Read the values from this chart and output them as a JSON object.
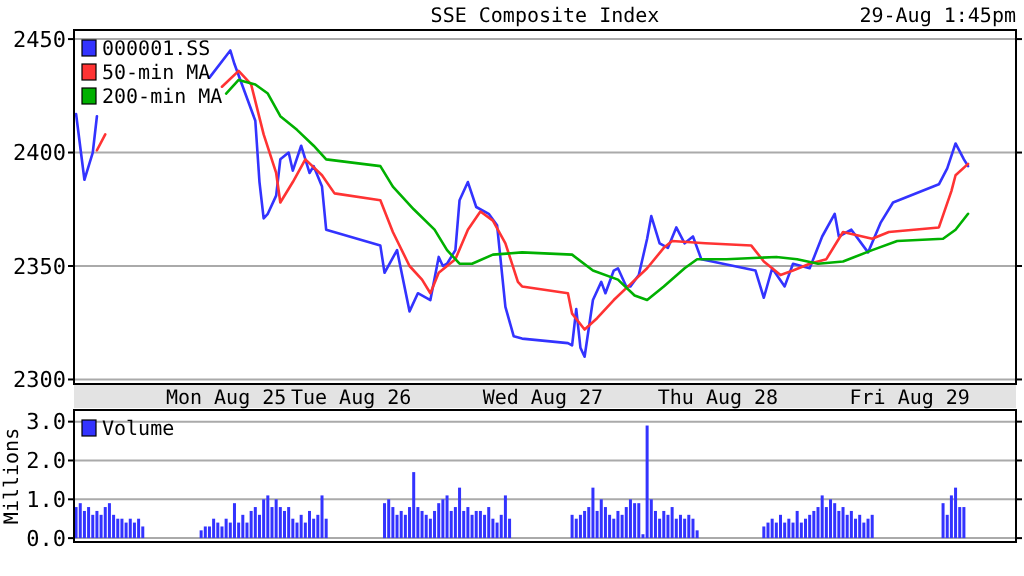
{
  "chart_data": [
    {
      "type": "line",
      "title": "SSE Composite Index",
      "subtitle": "29-Aug 1:45pm",
      "categories": [
        null,
        null,
        null,
        null,
        null,
        null,
        null,
        null,
        null,
        null,
        null,
        null,
        null,
        null,
        null,
        null,
        null,
        null,
        null,
        null,
        null,
        null,
        null,
        null,
        null,
        null,
        null,
        null,
        null,
        null,
        null,
        null,
        null,
        null,
        null,
        null,
        "Mon Aug 25",
        null,
        null,
        null,
        null,
        null,
        null,
        null,
        null,
        null,
        null,
        null,
        null,
        null,
        null,
        null,
        null,
        null,
        null,
        null,
        null,
        null,
        null,
        null,
        null,
        null,
        null,
        null,
        null,
        null,
        "Tue Aug 26",
        null,
        null,
        null,
        null,
        null,
        null,
        null,
        null,
        null,
        null,
        null,
        null,
        null,
        null,
        null,
        null,
        null,
        null,
        null,
        null,
        null,
        null,
        null,
        null,
        null,
        null,
        null,
        null,
        null,
        null,
        null,
        null,
        null,
        null,
        null,
        null,
        null,
        null,
        null,
        null,
        null,
        null,
        null,
        null,
        null,
        "Wed Aug 27",
        null,
        null,
        null,
        null,
        null,
        null,
        null,
        null,
        null,
        null,
        null,
        null,
        null,
        null,
        null,
        null,
        null,
        null,
        null,
        null,
        null,
        null,
        null,
        null,
        null,
        null,
        null,
        null,
        null,
        null,
        null,
        null,
        null,
        null,
        null,
        null,
        null,
        null,
        null,
        null,
        null,
        "Thu Aug 28",
        null,
        null,
        null,
        null,
        null,
        null,
        null,
        null,
        null,
        null,
        null,
        null,
        null,
        null,
        null,
        null,
        null,
        null,
        null,
        null,
        null,
        null,
        null,
        null,
        null,
        null,
        null,
        null,
        null,
        null,
        null,
        null,
        null,
        null,
        null,
        null,
        null,
        null,
        null,
        null,
        null,
        null,
        null,
        null,
        null,
        "Fri Aug 29",
        null,
        null,
        null,
        null,
        null,
        null,
        null,
        null,
        null,
        null,
        null,
        null,
        null,
        null,
        null,
        null,
        null,
        null,
        null,
        null,
        null,
        null,
        null,
        null,
        null
      ],
      "ylim": [
        2298,
        2454
      ],
      "yticks": [
        2300,
        2350,
        2400,
        2450
      ],
      "grid": "y",
      "legend": "top left",
      "series": [
        {
          "name": "000001.SS",
          "color": "#3333ff",
          "values": [
            2417,
            null,
            2388,
            null,
            2400,
            2416,
            null,
            null,
            null,
            null,
            null,
            null,
            null,
            null,
            null,
            null,
            null,
            null,
            null,
            null,
            null,
            null,
            null,
            null,
            null,
            null,
            null,
            null,
            null,
            null,
            null,
            null,
            2433,
            null,
            null,
            null,
            null,
            2445,
            2439,
            null,
            2429,
            null,
            null,
            2414,
            2387,
            2371,
            2373,
            null,
            2381,
            2397,
            null,
            2400,
            2392,
            null,
            2403,
            null,
            2391,
            2394,
            null,
            2385,
            2366,
            null,
            null,
            null,
            null,
            null,
            null,
            null,
            null,
            null,
            null,
            null,
            null,
            2359,
            2347,
            null,
            null,
            2357,
            null,
            null,
            2330,
            null,
            2338,
            null,
            null,
            2335,
            null,
            2354,
            2350,
            2351,
            null,
            2357,
            2379,
            null,
            2387,
            null,
            2376,
            null,
            null,
            2373,
            null,
            2368,
            null,
            2332,
            null,
            2319,
            null,
            2318,
            null,
            null,
            null,
            null,
            null,
            null,
            null,
            null,
            null,
            null,
            2316,
            2315,
            2331,
            2314,
            2310,
            null,
            2335,
            null,
            2343,
            2338,
            null,
            2348,
            2349,
            null,
            2341,
            2341,
            null,
            2346,
            null,
            2362,
            2372,
            null,
            2360,
            null,
            2358,
            null,
            2367,
            null,
            2360,
            null,
            2363,
            null,
            2353,
            null,
            null,
            null,
            null,
            null,
            null,
            null,
            null,
            null,
            null,
            null,
            null,
            2348,
            null,
            2336,
            null,
            2349,
            null,
            null,
            2341,
            null,
            2351,
            null,
            null,
            null,
            2349,
            null,
            null,
            2363,
            null,
            null,
            2373,
            2363,
            null,
            null,
            2366,
            null,
            null,
            null,
            2356,
            null,
            null,
            2369,
            null,
            null,
            2378,
            null,
            null,
            null,
            null,
            null,
            null,
            null,
            null,
            null,
            null,
            2386,
            null,
            2393,
            null,
            2404,
            null,
            2397,
            2394,
            null,
            null,
            null,
            null,
            null,
            null,
            null,
            null,
            null,
            null,
            null
          ]
        },
        {
          "name": "50-min MA",
          "color": "#ff3333",
          "values": [
            null,
            null,
            null,
            null,
            null,
            2401,
            null,
            2408,
            null,
            null,
            null,
            null,
            null,
            null,
            null,
            null,
            null,
            null,
            null,
            null,
            null,
            null,
            null,
            null,
            null,
            null,
            null,
            null,
            null,
            null,
            null,
            null,
            null,
            null,
            null,
            2429,
            null,
            null,
            null,
            2436,
            null,
            null,
            2430,
            null,
            null,
            2408,
            null,
            null,
            2391,
            2378,
            null,
            null,
            2387,
            null,
            null,
            2397,
            null,
            null,
            null,
            2390,
            null,
            null,
            2382,
            null,
            null,
            null,
            null,
            null,
            null,
            null,
            null,
            null,
            null,
            2379,
            null,
            null,
            2365,
            null,
            null,
            null,
            2350,
            null,
            null,
            2344,
            null,
            2338,
            null,
            2347,
            null,
            null,
            null,
            2353,
            null,
            null,
            2366,
            null,
            null,
            2374,
            null,
            null,
            2370,
            null,
            null,
            2360,
            null,
            null,
            2343,
            2341,
            null,
            null,
            null,
            null,
            null,
            null,
            null,
            null,
            null,
            null,
            2338,
            2329,
            null,
            null,
            2322,
            null,
            null,
            2327,
            null,
            null,
            null,
            2335,
            null,
            null,
            null,
            2342,
            null,
            null,
            null,
            2349,
            null,
            null,
            null,
            2358,
            null,
            2361,
            null,
            null,
            null,
            null,
            null,
            null,
            null,
            2360,
            null,
            null,
            null,
            null,
            null,
            null,
            null,
            null,
            null,
            null,
            2359,
            null,
            null,
            2352,
            null,
            null,
            null,
            2346,
            null,
            null,
            2348,
            null,
            null,
            null,
            2351,
            null,
            null,
            null,
            2353,
            null,
            null,
            null,
            2365,
            null,
            null,
            null,
            null,
            null,
            null,
            2362,
            null,
            null,
            null,
            2365,
            null,
            null,
            null,
            null,
            null,
            null,
            null,
            null,
            null,
            null,
            null,
            2367,
            null,
            null,
            2383,
            2390,
            null,
            null,
            2395,
            null,
            null,
            null,
            null,
            null,
            null,
            null,
            null,
            null,
            null,
            null
          ]
        },
        {
          "name": "200-min MA",
          "color": "#00b000",
          "values": [
            null,
            null,
            null,
            null,
            null,
            null,
            null,
            null,
            null,
            null,
            null,
            null,
            null,
            null,
            null,
            null,
            null,
            null,
            null,
            null,
            null,
            null,
            null,
            null,
            null,
            null,
            null,
            null,
            null,
            null,
            null,
            null,
            null,
            null,
            null,
            null,
            2426,
            null,
            null,
            2432,
            null,
            null,
            null,
            2430,
            null,
            null,
            2426,
            null,
            null,
            2416,
            null,
            null,
            null,
            2410,
            null,
            null,
            null,
            2403,
            null,
            null,
            2397,
            null,
            null,
            null,
            null,
            null,
            null,
            null,
            null,
            null,
            null,
            null,
            null,
            2394,
            null,
            null,
            2385,
            null,
            null,
            null,
            null,
            2375,
            null,
            null,
            null,
            null,
            2366,
            null,
            null,
            2357,
            null,
            null,
            2351,
            null,
            null,
            2351,
            null,
            null,
            null,
            null,
            2355,
            null,
            null,
            null,
            null,
            null,
            null,
            2356,
            null,
            null,
            null,
            null,
            null,
            null,
            null,
            null,
            null,
            null,
            null,
            2355,
            null,
            null,
            null,
            null,
            2348,
            null,
            null,
            null,
            null,
            null,
            2344,
            null,
            null,
            null,
            2337,
            null,
            null,
            2335,
            null,
            null,
            null,
            2341,
            null,
            null,
            null,
            null,
            2349,
            null,
            null,
            2353,
            null,
            null,
            null,
            null,
            null,
            null,
            2353,
            null,
            null,
            null,
            null,
            null,
            null,
            null,
            null,
            null,
            null,
            null,
            2354,
            null,
            null,
            null,
            null,
            2353,
            null,
            null,
            null,
            null,
            2351,
            null,
            null,
            null,
            null,
            null,
            2352,
            null,
            null,
            null,
            null,
            null,
            null,
            2357,
            null,
            null,
            null,
            null,
            null,
            2361,
            null,
            null,
            null,
            null,
            null,
            null,
            null,
            null,
            null,
            null,
            2362,
            null,
            null,
            2366,
            null,
            null,
            2373,
            null,
            null,
            null,
            null,
            null,
            null,
            null,
            null,
            null,
            null,
            null
          ]
        }
      ]
    },
    {
      "type": "bar",
      "ylabel": "Millions",
      "categories": [
        null,
        null,
        null,
        null,
        null,
        null,
        null,
        null,
        null,
        null,
        null,
        null,
        null,
        null,
        null,
        null,
        null,
        null,
        null,
        null,
        null,
        null,
        null,
        null,
        null,
        null,
        null,
        null,
        null,
        null,
        null,
        null,
        null,
        null,
        null,
        null,
        null,
        null,
        null,
        null,
        null,
        null,
        null,
        null,
        null,
        null,
        null,
        null,
        null,
        null,
        null,
        null,
        null,
        null,
        null,
        null,
        null,
        null,
        null,
        null,
        null,
        null,
        null,
        null,
        null,
        null,
        null,
        null,
        null,
        null,
        null,
        null,
        null,
        null,
        null,
        null,
        null,
        null,
        null,
        null,
        null,
        null,
        null,
        null,
        null,
        null,
        null,
        null,
        null,
        null,
        null,
        null,
        null,
        null,
        null,
        null,
        null,
        null,
        null,
        null,
        null,
        null,
        null,
        null,
        null,
        null,
        null,
        null,
        null,
        null,
        null,
        null,
        null,
        null,
        null,
        null,
        null,
        null,
        null,
        null,
        null,
        null,
        null,
        null,
        null,
        null,
        null,
        null,
        null,
        null,
        null,
        null,
        null,
        null,
        null,
        null,
        null,
        null,
        null,
        null,
        null,
        null,
        null,
        null,
        null,
        null,
        null,
        null,
        null,
        null,
        null,
        null,
        null,
        null,
        null,
        null,
        null,
        null,
        null,
        null,
        null,
        null,
        null,
        null,
        null,
        null,
        null,
        null,
        null,
        null,
        null,
        null,
        null,
        null,
        null,
        null,
        null,
        null,
        null,
        null,
        null,
        null,
        null,
        null,
        null,
        null,
        null,
        null,
        null,
        null,
        null,
        null,
        null,
        null,
        null,
        null,
        null,
        null,
        null,
        null,
        null,
        null,
        null,
        null,
        null,
        null,
        null,
        null,
        null,
        null,
        null,
        null,
        null,
        null,
        null,
        null,
        null,
        null,
        null,
        null,
        null,
        null,
        null,
        null,
        null,
        null
      ],
      "ylim": [
        -0.1,
        3.3
      ],
      "yticks": [
        {
          "value": 0,
          "label": "0.0"
        },
        {
          "value": 1,
          "label": "1.0"
        },
        {
          "value": 2,
          "label": "2.0"
        },
        {
          "value": 3,
          "label": "3.0"
        }
      ],
      "grid": "y",
      "legend": "top left",
      "tick_labels": "y",
      "series": [
        {
          "name": "Volume",
          "color": "#3333ff",
          "values": [
            0.8,
            0.9,
            0.7,
            0.8,
            0.6,
            0.7,
            0.6,
            0.8,
            0.9,
            0.6,
            0.5,
            0.5,
            0.4,
            0.5,
            0.4,
            0.5,
            0.3,
            null,
            null,
            null,
            null,
            null,
            null,
            null,
            null,
            null,
            null,
            null,
            null,
            null,
            0.2,
            0.3,
            0.3,
            0.5,
            0.4,
            0.3,
            0.5,
            0.4,
            0.9,
            0.4,
            0.6,
            0.4,
            0.7,
            0.8,
            0.6,
            1.0,
            1.1,
            0.8,
            1.0,
            0.8,
            0.7,
            0.8,
            0.5,
            0.4,
            0.6,
            0.4,
            0.7,
            0.5,
            0.6,
            1.1,
            0.5,
            null,
            null,
            null,
            null,
            null,
            null,
            null,
            null,
            null,
            null,
            null,
            null,
            null,
            0.9,
            1.0,
            0.8,
            0.6,
            0.7,
            0.6,
            0.8,
            1.7,
            0.8,
            0.7,
            0.6,
            0.5,
            0.7,
            0.9,
            1.0,
            1.1,
            0.7,
            0.8,
            1.3,
            0.7,
            0.8,
            0.6,
            0.7,
            0.7,
            0.6,
            0.8,
            0.5,
            0.4,
            0.6,
            1.1,
            0.5,
            null,
            null,
            null,
            null,
            null,
            null,
            null,
            null,
            null,
            null,
            null,
            null,
            null,
            null,
            0.6,
            0.5,
            0.6,
            0.7,
            0.8,
            1.3,
            0.7,
            1.0,
            0.8,
            0.6,
            0.5,
            0.7,
            0.6,
            0.8,
            1.0,
            0.9,
            0.9,
            0.1,
            2.9,
            1.0,
            0.7,
            0.5,
            0.7,
            0.6,
            0.8,
            0.5,
            0.6,
            0.5,
            0.6,
            0.5,
            0.2,
            null,
            null,
            null,
            null,
            null,
            null,
            null,
            null,
            null,
            null,
            null,
            null,
            null,
            null,
            null,
            0.3,
            0.4,
            0.5,
            0.4,
            0.6,
            0.4,
            0.5,
            0.4,
            0.7,
            0.4,
            0.5,
            0.6,
            0.7,
            0.8,
            1.1,
            0.8,
            1.0,
            0.9,
            0.7,
            0.8,
            0.6,
            0.7,
            0.5,
            0.6,
            0.4,
            0.5,
            0.6,
            null,
            null,
            null,
            null,
            null,
            null,
            null,
            null,
            null,
            null,
            null,
            null,
            null,
            null,
            null,
            null,
            0.9,
            0.6,
            1.1,
            1.3,
            0.8,
            0.8,
            null,
            null,
            null,
            null,
            null,
            null,
            null,
            null,
            null,
            null,
            null,
            null
          ]
        }
      ]
    }
  ]
}
